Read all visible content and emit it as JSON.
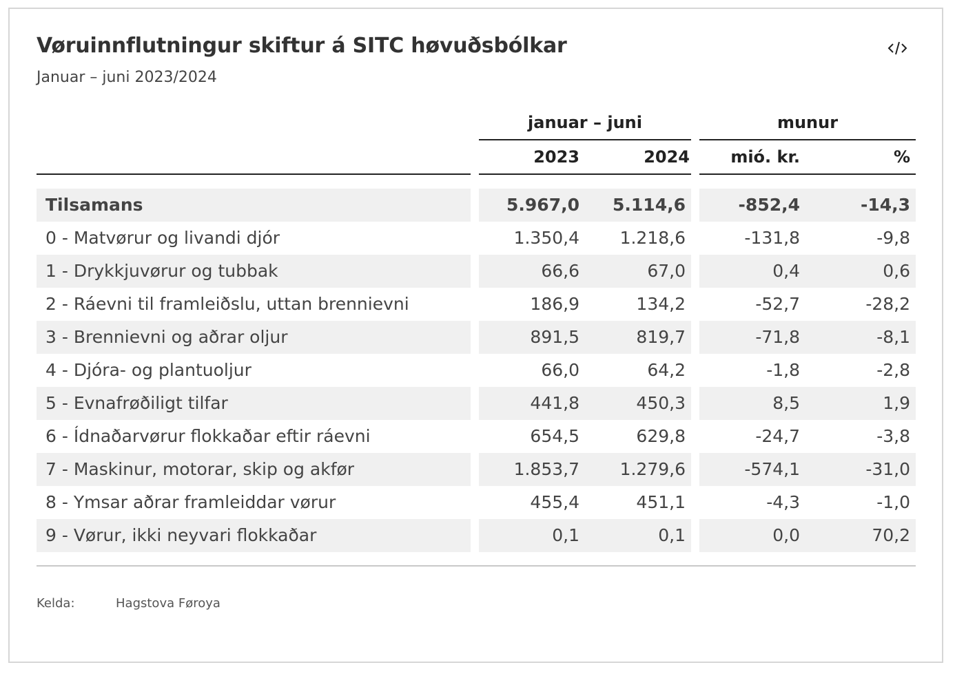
{
  "header": {
    "title": "Vøruinnflutningur skiftur á SITC høvuðsbólkar",
    "subtitle": "Januar – juni 2023/2024",
    "embed_icon": "code-embed-icon"
  },
  "table": {
    "group_headers": [
      "januar – juni",
      "munur"
    ],
    "column_headers": [
      "2023",
      "2024",
      "mió. kr.",
      "%"
    ]
  },
  "chart_data": {
    "type": "table",
    "columns": [
      "",
      "2023",
      "2024",
      "mió. kr.",
      "%"
    ],
    "rows": [
      {
        "label": "Tilsamans",
        "values": [
          "5.967,0",
          "5.114,6",
          "-852,4",
          "-14,3"
        ],
        "total": true
      },
      {
        "label": "0 - Matvørur og livandi djór",
        "values": [
          "1.350,4",
          "1.218,6",
          "-131,8",
          "-9,8"
        ]
      },
      {
        "label": "1 - Drykkjuvørur og tubbak",
        "values": [
          "66,6",
          "67,0",
          "0,4",
          "0,6"
        ]
      },
      {
        "label": "2 - Ráevni til framleiðslu, uttan brennievni",
        "values": [
          "186,9",
          "134,2",
          "-52,7",
          "-28,2"
        ]
      },
      {
        "label": "3 - Brennievni og aðrar oljur",
        "values": [
          "891,5",
          "819,7",
          "-71,8",
          "-8,1"
        ]
      },
      {
        "label": "4 - Djóra- og plantuoljur",
        "values": [
          "66,0",
          "64,2",
          "-1,8",
          "-2,8"
        ]
      },
      {
        "label": "5 - Evnafrøðiligt tilfar",
        "values": [
          "441,8",
          "450,3",
          "8,5",
          "1,9"
        ]
      },
      {
        "label": "6 - Ídnaðarvørur flokkaðar eftir ráevni",
        "values": [
          "654,5",
          "629,8",
          "-24,7",
          "-3,8"
        ]
      },
      {
        "label": "7 - Maskinur, motorar, skip og akfør",
        "values": [
          "1.853,7",
          "1.279,6",
          "-574,1",
          "-31,0"
        ]
      },
      {
        "label": "8 - Ymsar aðrar framleiddar vørur",
        "values": [
          "455,4",
          "451,1",
          "-4,3",
          "-1,0"
        ]
      },
      {
        "label": "9 - Vørur, ikki neyvari flokkaðar",
        "values": [
          "0,1",
          "0,1",
          "0,0",
          "70,2"
        ]
      }
    ]
  },
  "footer": {
    "source_label": "Kelda:",
    "source_value": "Hagstova Føroya"
  },
  "colors": {
    "stripe": "#f0f0f0",
    "text": "#444444",
    "rule": "#222222"
  }
}
